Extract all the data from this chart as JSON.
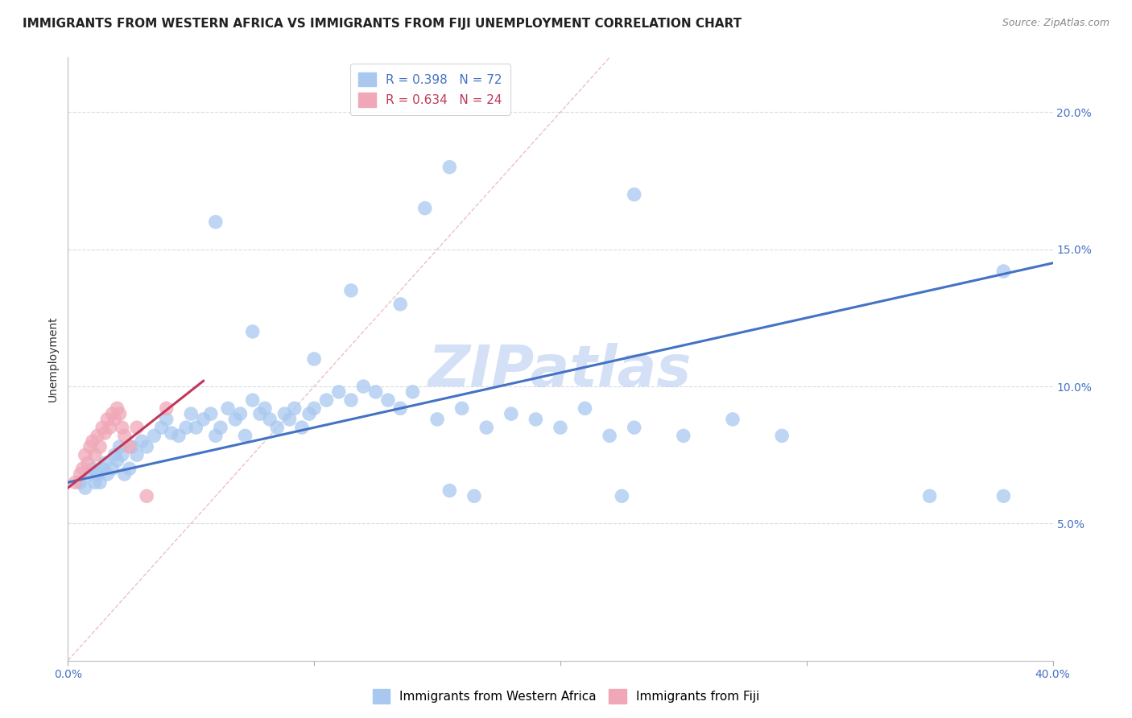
{
  "title": "IMMIGRANTS FROM WESTERN AFRICA VS IMMIGRANTS FROM FIJI UNEMPLOYMENT CORRELATION CHART",
  "source": "Source: ZipAtlas.com",
  "ylabel": "Unemployment",
  "xlim": [
    0.0,
    0.4
  ],
  "ylim": [
    0.0,
    0.22
  ],
  "yticks": [
    0.05,
    0.1,
    0.15,
    0.2
  ],
  "ytick_labels": [
    "5.0%",
    "10.0%",
    "15.0%",
    "20.0%"
  ],
  "xtick_positions": [
    0.0,
    0.1,
    0.2,
    0.3,
    0.4
  ],
  "xtick_labels": [
    "0.0%",
    "",
    "",
    "",
    "40.0%"
  ],
  "watermark": "ZIPatlas",
  "scatter_color_blue": "#a8c8f0",
  "scatter_color_pink": "#f0a8b8",
  "line_color_blue": "#4472c4",
  "line_color_pink": "#c0385a",
  "diagonal_color": "#e8b0b8",
  "background_color": "#ffffff",
  "grid_color": "#d0d8e8",
  "blue_line_x": [
    0.0,
    0.4
  ],
  "blue_line_y": [
    0.065,
    0.145
  ],
  "pink_line_x": [
    0.0,
    0.055
  ],
  "pink_line_y": [
    0.063,
    0.102
  ],
  "diagonal_line_x": [
    0.0,
    0.22
  ],
  "diagonal_line_y": [
    0.0,
    0.22
  ],
  "blue_x": [
    0.005,
    0.007,
    0.009,
    0.01,
    0.011,
    0.012,
    0.013,
    0.014,
    0.015,
    0.016,
    0.018,
    0.019,
    0.02,
    0.021,
    0.022,
    0.023,
    0.025,
    0.026,
    0.028,
    0.03,
    0.032,
    0.035,
    0.038,
    0.04,
    0.042,
    0.045,
    0.048,
    0.05,
    0.052,
    0.055,
    0.058,
    0.06,
    0.062,
    0.065,
    0.068,
    0.07,
    0.072,
    0.075,
    0.078,
    0.08,
    0.082,
    0.085,
    0.088,
    0.09,
    0.092,
    0.095,
    0.098,
    0.1,
    0.105,
    0.11,
    0.115,
    0.12,
    0.125,
    0.13,
    0.135,
    0.14,
    0.15,
    0.16,
    0.17,
    0.18,
    0.19,
    0.2,
    0.21,
    0.22,
    0.23,
    0.25,
    0.27,
    0.29,
    0.35,
    0.38,
    0.155,
    0.165
  ],
  "blue_y": [
    0.065,
    0.063,
    0.068,
    0.07,
    0.065,
    0.068,
    0.065,
    0.07,
    0.072,
    0.068,
    0.07,
    0.075,
    0.073,
    0.078,
    0.075,
    0.068,
    0.07,
    0.078,
    0.075,
    0.08,
    0.078,
    0.082,
    0.085,
    0.088,
    0.083,
    0.082,
    0.085,
    0.09,
    0.085,
    0.088,
    0.09,
    0.082,
    0.085,
    0.092,
    0.088,
    0.09,
    0.082,
    0.095,
    0.09,
    0.092,
    0.088,
    0.085,
    0.09,
    0.088,
    0.092,
    0.085,
    0.09,
    0.092,
    0.095,
    0.098,
    0.095,
    0.1,
    0.098,
    0.095,
    0.092,
    0.098,
    0.088,
    0.092,
    0.085,
    0.09,
    0.088,
    0.085,
    0.092,
    0.082,
    0.085,
    0.082,
    0.088,
    0.082,
    0.06,
    0.142,
    0.062,
    0.06
  ],
  "blue_outlier_x": [
    0.075,
    0.1,
    0.115,
    0.135,
    0.155,
    0.23,
    0.145,
    0.06
  ],
  "blue_outlier_y": [
    0.12,
    0.11,
    0.135,
    0.13,
    0.18,
    0.17,
    0.165,
    0.16
  ],
  "pink_x": [
    0.003,
    0.005,
    0.006,
    0.007,
    0.008,
    0.009,
    0.01,
    0.011,
    0.012,
    0.013,
    0.014,
    0.015,
    0.016,
    0.017,
    0.018,
    0.019,
    0.02,
    0.021,
    0.022,
    0.023,
    0.025,
    0.028,
    0.032,
    0.04
  ],
  "pink_y": [
    0.065,
    0.068,
    0.07,
    0.075,
    0.072,
    0.078,
    0.08,
    0.075,
    0.082,
    0.078,
    0.085,
    0.083,
    0.088,
    0.085,
    0.09,
    0.088,
    0.092,
    0.09,
    0.085,
    0.082,
    0.078,
    0.085,
    0.06,
    0.092
  ],
  "title_fontsize": 11,
  "source_fontsize": 9,
  "tick_fontsize": 10,
  "watermark_fontsize": 52,
  "watermark_color": "#b8ccf0",
  "ylabel_fontsize": 10
}
